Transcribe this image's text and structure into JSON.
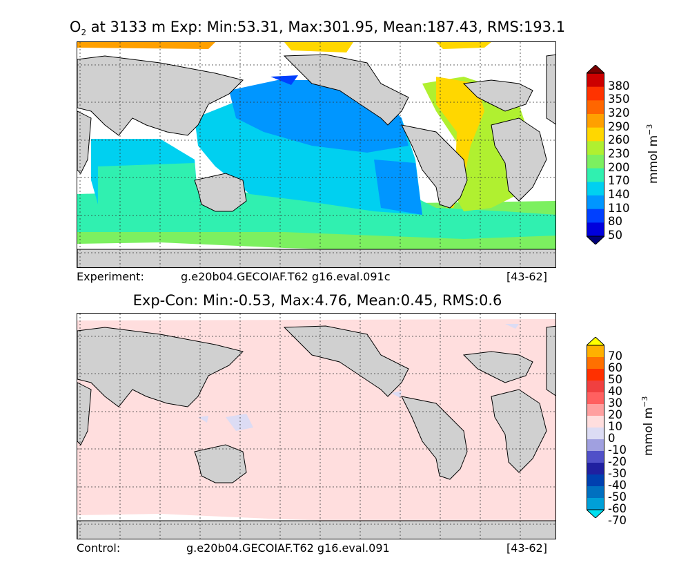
{
  "chart_data": [
    {
      "type": "heatmap",
      "title": {
        "var": "O",
        "sub": "2",
        "rest": " at 3133 m Exp: Min:53.31, Max:301.95, Mean:187.43, RMS:193.1"
      },
      "footer": {
        "left": "Experiment:",
        "center": "g.e20b04.GECOIAF.T62 g16.eval.091c",
        "right": "[43-62]"
      },
      "colorbar": {
        "unit": "mmol m",
        "unit_exp": "−3",
        "ticks": [
          "380",
          "350",
          "320",
          "290",
          "260",
          "230",
          "200",
          "170",
          "140",
          "110",
          "80",
          "50"
        ],
        "colors": [
          "#7a0000",
          "#cc0000",
          "#ff3300",
          "#ff6600",
          "#ffa000",
          "#ffd700",
          "#b0f030",
          "#7cf060",
          "#30f0b0",
          "#00d0f0",
          "#0096ff",
          "#0040ff",
          "#0000dd",
          "#00007a"
        ]
      }
    },
    {
      "type": "heatmap",
      "title": {
        "text": "Exp-Con: Min:-0.53, Max:4.76, Mean:0.45, RMS:0.6"
      },
      "footer": {
        "left": "Control:",
        "center": "g.e20b04.GECOIAF.T62 g16.eval.091",
        "right": "[43-62]"
      },
      "colorbar": {
        "unit": "mmol m",
        "unit_exp": "−3",
        "ticks": [
          "70",
          "60",
          "50",
          "40",
          "30",
          "20",
          "10",
          "0",
          "-10",
          "-20",
          "-30",
          "-40",
          "-50",
          "-60",
          "-70"
        ],
        "colors": [
          "#ffff00",
          "#ffb000",
          "#ff7000",
          "#ff3000",
          "#f04040",
          "#ff6060",
          "#ffa0a0",
          "#ffdede",
          "#dcdcf4",
          "#a0a0e0",
          "#5050c8",
          "#2020a0",
          "#0040b0",
          "#0070c0",
          "#00a0d8",
          "#00e0f0"
        ]
      }
    }
  ]
}
